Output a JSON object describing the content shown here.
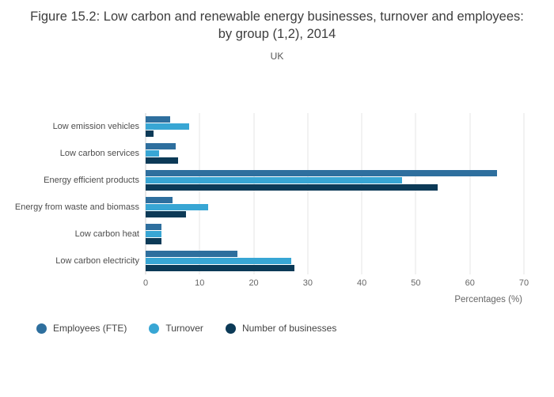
{
  "title": "Figure 15.2: Low carbon and renewable energy businesses, turnover and employees: by group (1,2), 2014",
  "subtitle": "UK",
  "chart_data": {
    "type": "bar",
    "orientation": "horizontal",
    "title": "Figure 15.2: Low carbon and renewable energy businesses, turnover and employees: by group (1,2), 2014",
    "subtitle": "UK",
    "xlabel": "Percentages (%)",
    "ylabel": "",
    "xlim": [
      0,
      70
    ],
    "xticks": [
      0,
      10,
      20,
      30,
      40,
      50,
      60,
      70
    ],
    "grid": true,
    "legend_position": "bottom-left",
    "categories": [
      "Low emission vehicles",
      "Low carbon services",
      "Energy efficient products",
      "Energy from waste and biomass",
      "Low carbon heat",
      "Low carbon electricity"
    ],
    "series": [
      {
        "name": "Employees (FTE)",
        "color": "#2e6f9e",
        "values": [
          4.5,
          5.5,
          65,
          5,
          3,
          17
        ]
      },
      {
        "name": "Turnover",
        "color": "#38a6d4",
        "values": [
          8,
          2.5,
          47.5,
          11.5,
          3,
          27
        ]
      },
      {
        "name": "Number of businesses",
        "color": "#0c3a57",
        "values": [
          1.5,
          6,
          54,
          7.5,
          3,
          27.5
        ]
      }
    ]
  }
}
